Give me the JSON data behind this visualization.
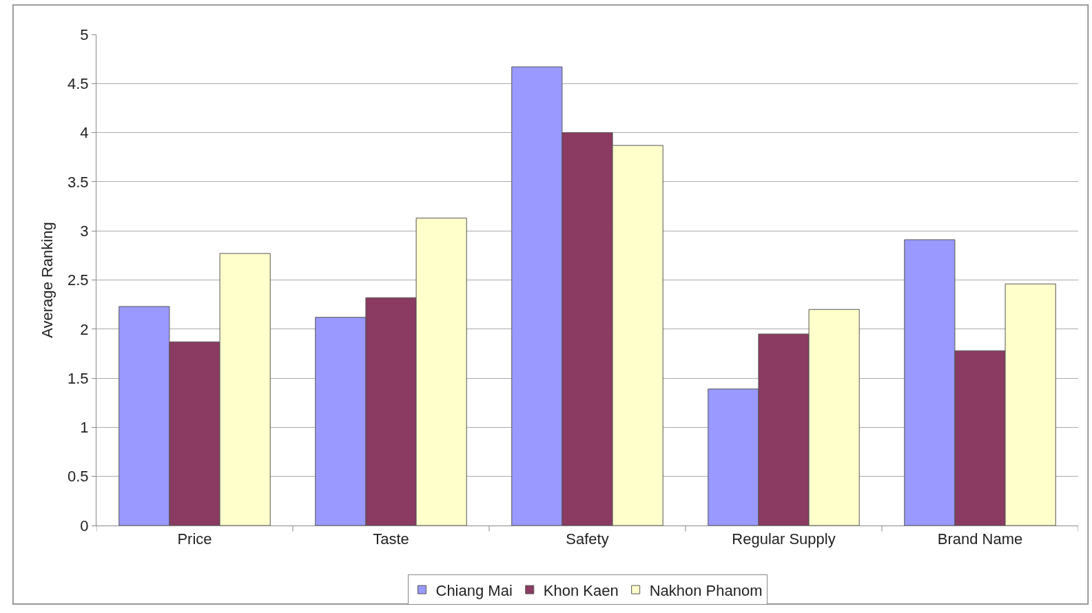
{
  "chart_data": {
    "type": "bar",
    "ylabel": "Average Ranking",
    "categories": [
      "Price",
      "Taste",
      "Safety",
      "Regular Supply",
      "Brand Name"
    ],
    "series": [
      {
        "name": "Chiang Mai",
        "color": "#9999ff",
        "values": [
          2.23,
          2.12,
          4.67,
          1.39,
          2.91
        ]
      },
      {
        "name": "Khon Kaen",
        "color": "#8b3a62",
        "values": [
          1.87,
          2.32,
          4.0,
          1.95,
          1.78
        ]
      },
      {
        "name": "Nakhon Phanom",
        "color": "#ffffcc",
        "values": [
          2.77,
          3.13,
          3.87,
          2.2,
          2.46
        ]
      }
    ],
    "ylim": [
      0,
      5
    ],
    "yticks": [
      0,
      0.5,
      1,
      1.5,
      2,
      2.5,
      3,
      3.5,
      4,
      4.5,
      5
    ],
    "grid": "y",
    "legend": "bottom"
  }
}
